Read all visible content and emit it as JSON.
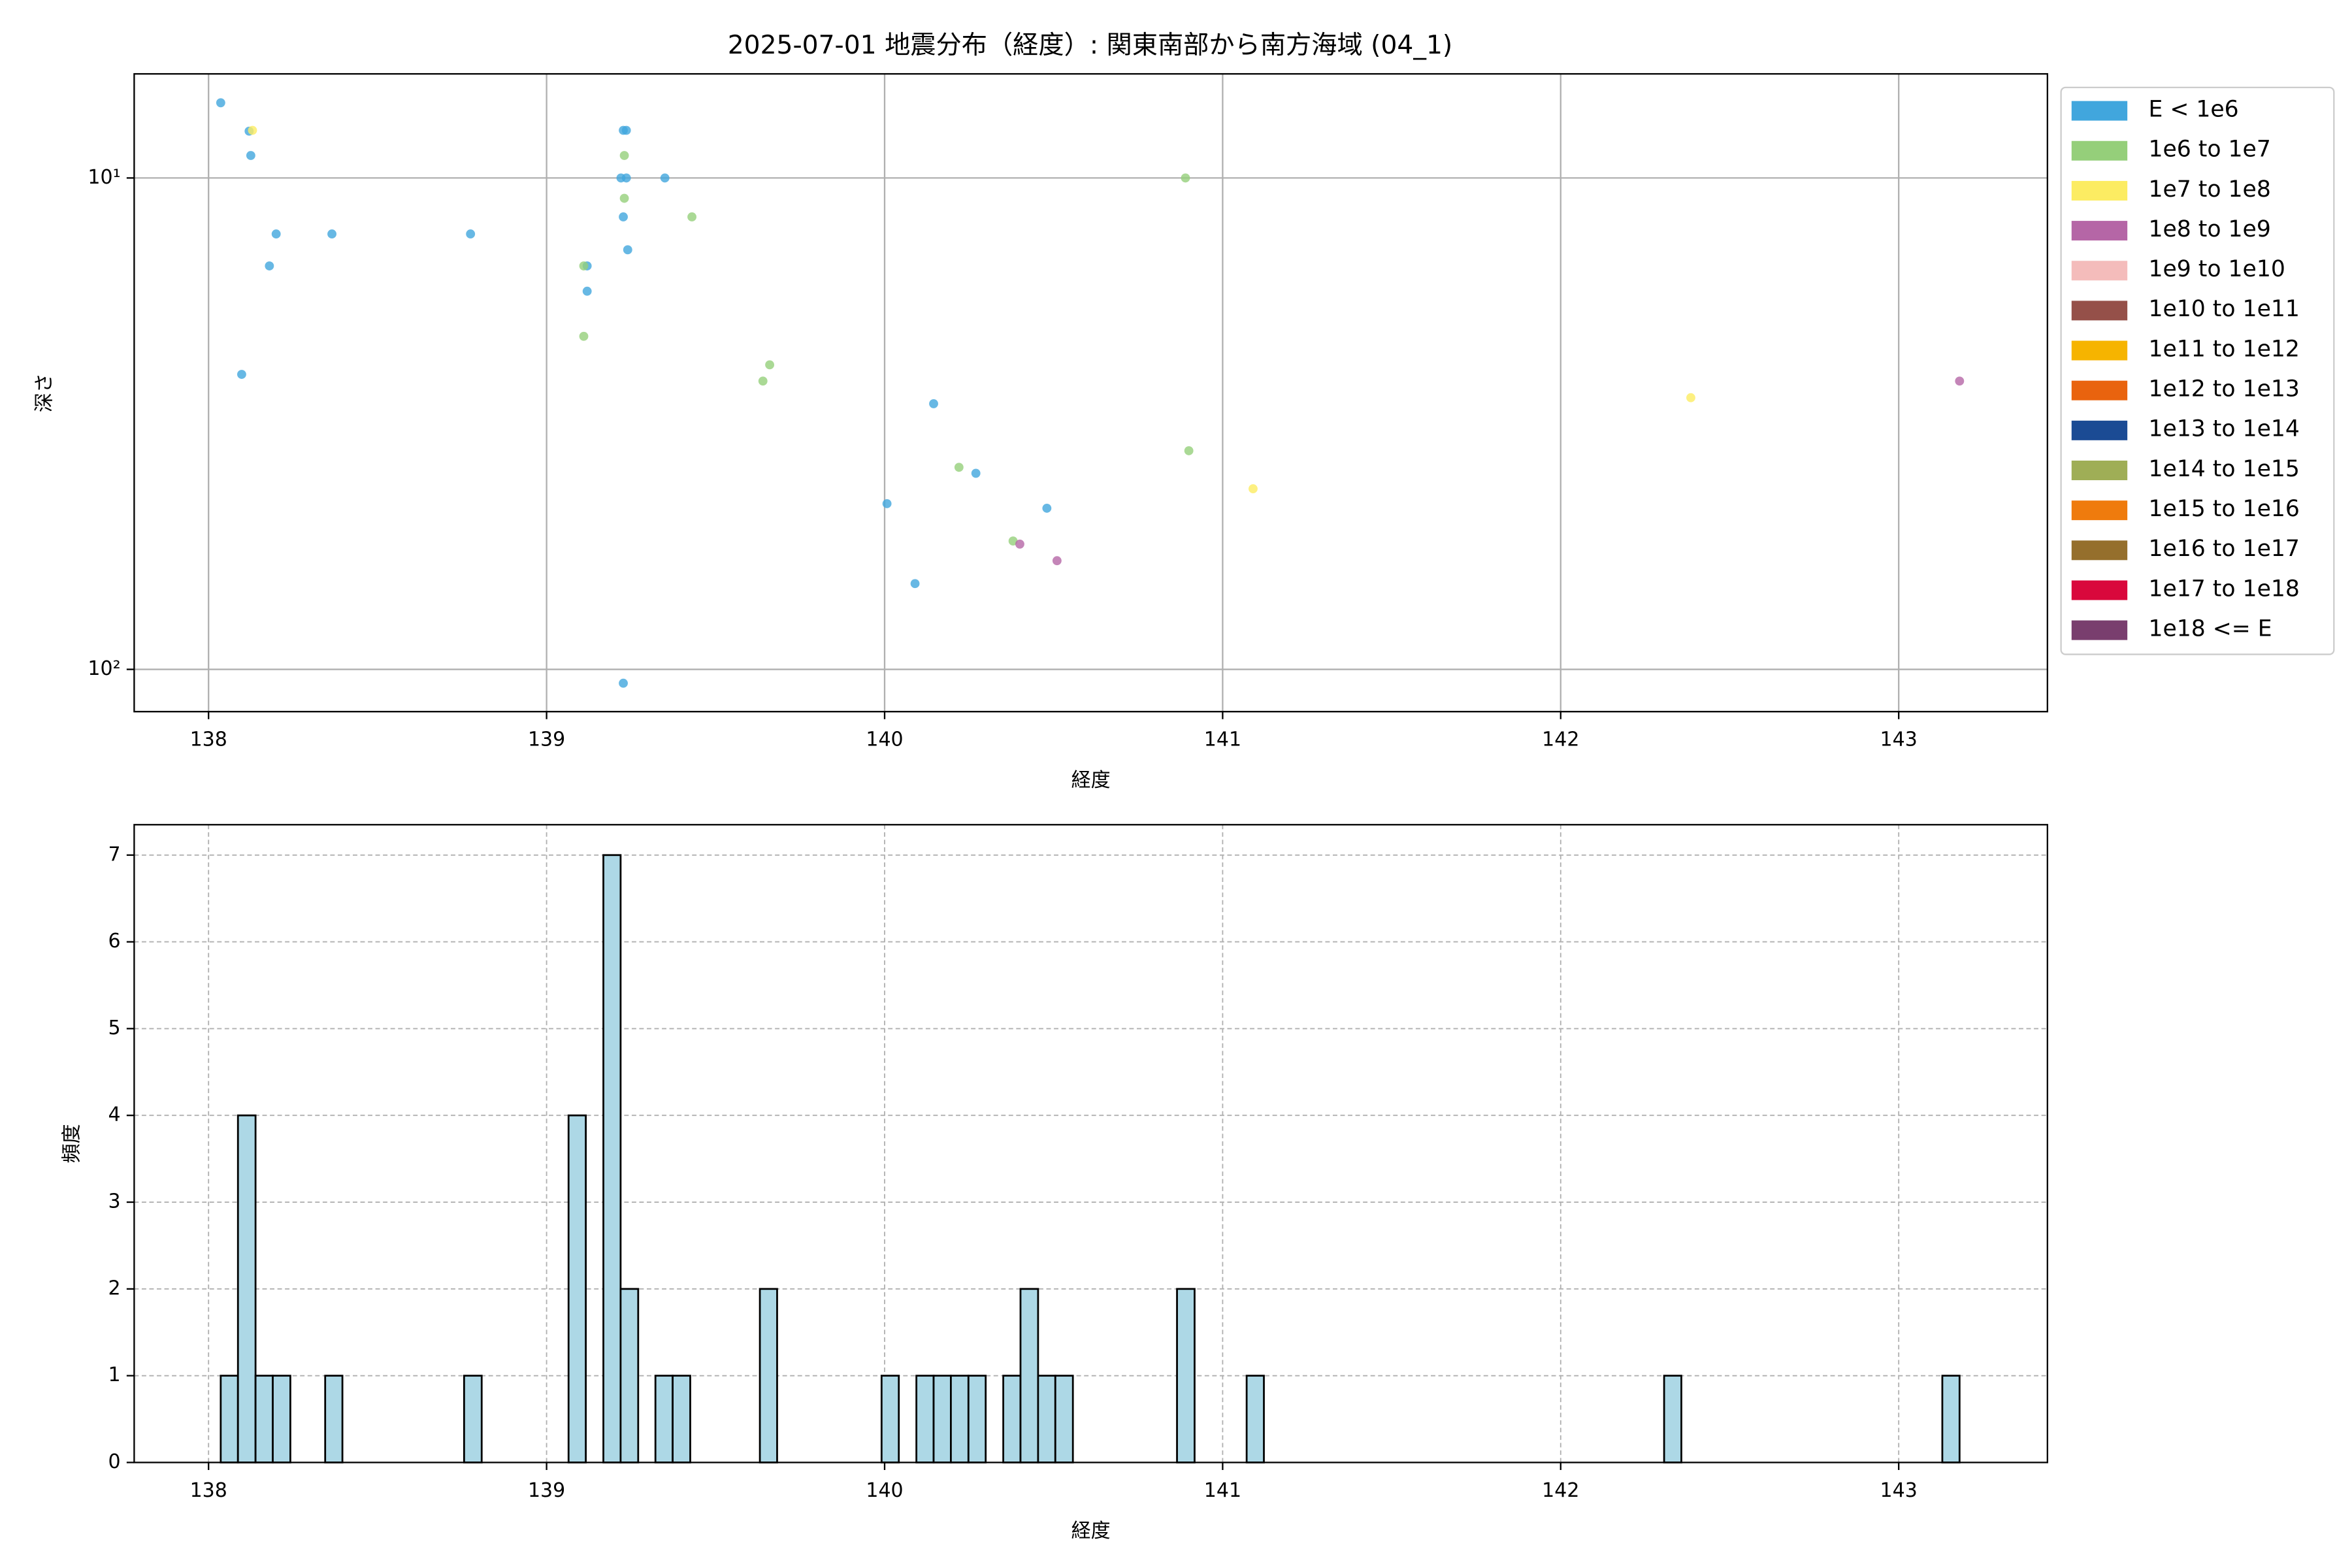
{
  "chart_data": [
    {
      "type": "scatter",
      "title": "2025-07-01 地震分布（経度）: 関東南部から南方海域 (04_1)",
      "xlabel": "経度",
      "ylabel": "深さ",
      "xlim": [
        137.78,
        143.44
      ],
      "xticks": [
        138,
        139,
        140,
        141,
        142,
        143
      ],
      "ylim": [
        6.14,
        121.9
      ],
      "yinvert": true,
      "log_y": true,
      "yticks": [
        {
          "value": 10,
          "label": "10¹"
        },
        {
          "value": 100,
          "label": "10²"
        }
      ],
      "grid": true,
      "legend": "outside-right",
      "series": [
        {
          "name": "E < 1e6",
          "color": "#41a6dd",
          "x": [
            138.036,
            138.12,
            138.125,
            138.2,
            138.365,
            138.775,
            138.18,
            138.098,
            139.227,
            139.236,
            139.22,
            139.236,
            139.227,
            139.24,
            139.35,
            139.12,
            139.12,
            139.227,
            140.145,
            140.007,
            140.09,
            140.27,
            140.48
          ],
          "y": [
            7.03,
            8.03,
            9.0,
            13.0,
            13.0,
            13.0,
            15.1,
            25.1,
            8.0,
            8.0,
            10,
            10,
            12.0,
            14.0,
            10,
            15.1,
            17.0,
            106.7,
            28.8,
            46.0,
            66.9,
            39.9,
            47.0
          ]
        },
        {
          "name": "1e6 to 1e7",
          "color": "#95cf7a",
          "x": [
            139.23,
            139.23,
            139.43,
            139.11,
            139.11,
            139.66,
            139.64,
            140.89,
            140.22,
            140.38,
            140.9
          ],
          "y": [
            9.0,
            11.0,
            12.0,
            15.1,
            21.0,
            24.0,
            25.9,
            10,
            38.8,
            54.8,
            35.9
          ]
        },
        {
          "name": "1e7 to 1e8",
          "color": "#fcec62",
          "x": [
            138.13,
            141.09,
            142.385
          ],
          "y": [
            8.0,
            42.9,
            28.0
          ]
        },
        {
          "name": "1e8 to 1e9",
          "color": "#b566a6",
          "x": [
            140.4,
            140.51,
            143.18
          ],
          "y": [
            55.6,
            60.1,
            25.9
          ]
        },
        {
          "name": "1e9 to 1e10",
          "color": "#f4bcbb",
          "x": [],
          "y": []
        },
        {
          "name": "1e10 to 1e11",
          "color": "#955049",
          "x": [],
          "y": []
        },
        {
          "name": "1e11 to 1e12",
          "color": "#f6b400",
          "x": [],
          "y": []
        },
        {
          "name": "1e12 to 1e13",
          "color": "#e9630e",
          "x": [],
          "y": []
        },
        {
          "name": "1e13 to 1e14",
          "color": "#1b4b94",
          "x": [],
          "y": []
        },
        {
          "name": "1e14 to 1e15",
          "color": "#9fae56",
          "x": [],
          "y": []
        },
        {
          "name": "1e15 to 1e16",
          "color": "#ef7b0d",
          "x": [],
          "y": []
        },
        {
          "name": "1e16 to 1e17",
          "color": "#956f2c",
          "x": [],
          "y": []
        },
        {
          "name": "1e17 to 1e18",
          "color": "#d9083c",
          "x": [],
          "y": []
        },
        {
          "name": "1e18 <= E",
          "color": "#793e6e",
          "x": [],
          "y": []
        }
      ]
    },
    {
      "type": "histogram",
      "xlabel": "経度",
      "ylabel": "頻度",
      "color": "#add8e6",
      "edgecolor": "#000000",
      "xlim": [
        137.78,
        143.44
      ],
      "xticks": [
        138,
        139,
        140,
        141,
        142,
        143
      ],
      "ylim": [
        0,
        7.35
      ],
      "yticks": [
        0,
        1,
        2,
        3,
        4,
        5,
        6,
        7
      ],
      "grid": true,
      "bins": [
        138.036,
        138.087,
        138.139,
        138.19,
        138.242,
        138.293,
        138.345,
        138.396,
        138.448,
        138.499,
        138.55,
        138.602,
        138.653,
        138.705,
        138.756,
        138.808,
        138.859,
        138.91,
        138.962,
        139.013,
        139.065,
        139.116,
        139.168,
        139.219,
        139.271,
        139.322,
        139.373,
        139.425,
        139.476,
        139.528,
        139.579,
        139.631,
        139.682,
        139.734,
        139.785,
        139.836,
        139.888,
        139.939,
        139.991,
        140.042,
        140.094,
        140.145,
        140.196,
        140.248,
        140.299,
        140.351,
        140.402,
        140.454,
        140.505,
        140.557,
        140.608,
        140.659,
        140.711,
        140.762,
        140.814,
        140.865,
        140.917,
        140.968,
        141.02,
        141.071,
        141.122,
        141.174,
        141.225,
        141.277,
        141.328,
        141.38,
        141.431,
        141.482,
        141.534,
        141.585,
        141.637,
        141.688,
        141.74,
        141.791,
        141.843,
        141.894,
        141.945,
        141.997,
        142.048,
        142.1,
        142.151,
        142.203,
        142.254,
        142.306,
        142.357,
        142.408,
        142.46,
        142.511,
        142.563,
        142.614,
        142.666,
        142.717,
        142.769,
        142.82,
        142.871,
        142.923,
        142.974,
        143.026,
        143.077,
        143.129,
        143.18
      ],
      "values": [
        1,
        4,
        1,
        1,
        0,
        0,
        1,
        0,
        0,
        0,
        0,
        0,
        0,
        0,
        1,
        0,
        0,
        0,
        0,
        0,
        4,
        0,
        7,
        2,
        0,
        1,
        1,
        0,
        0,
        0,
        0,
        2,
        0,
        0,
        0,
        0,
        0,
        0,
        1,
        0,
        1,
        1,
        1,
        1,
        0,
        1,
        2,
        1,
        1,
        0,
        0,
        0,
        0,
        0,
        0,
        2,
        0,
        0,
        0,
        1,
        0,
        0,
        0,
        0,
        0,
        0,
        0,
        0,
        0,
        0,
        0,
        0,
        0,
        0,
        0,
        0,
        0,
        0,
        0,
        0,
        0,
        0,
        0,
        1,
        0,
        0,
        0,
        0,
        0,
        0,
        0,
        0,
        0,
        0,
        0,
        0,
        0,
        0,
        0,
        1
      ]
    }
  ]
}
